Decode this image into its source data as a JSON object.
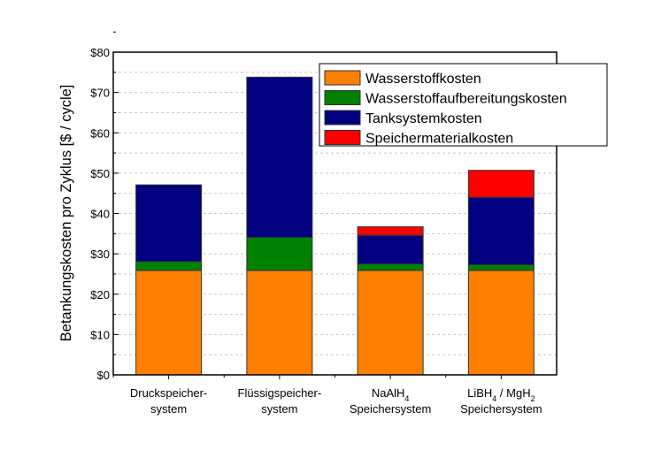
{
  "chart_data": {
    "type": "bar",
    "stacked": true,
    "title": "",
    "xlabel": "",
    "ylabel": "Betankungskosten pro Zyklus [$ / cycle]",
    "ylim": [
      0,
      80
    ],
    "yticks": [
      "$0",
      "$10",
      "$20",
      "$30",
      "$40",
      "$50",
      "$60",
      "$70",
      "$80"
    ],
    "grid": "dashed horizontal every $5",
    "legend_position": "top-right",
    "categories": [
      {
        "line1": "Druckspeicher-",
        "line2": "system"
      },
      {
        "line1": "Flüssigspeicher-",
        "line2": "system"
      },
      {
        "line1": "NaAlH",
        "sub1": "4",
        "line2": "Speichersystem"
      },
      {
        "line1": "LiBH",
        "sub1": "4",
        "mid": " / MgH",
        "sub2": "2",
        "line2": "Speichersystem"
      }
    ],
    "series": [
      {
        "name": "Wasserstoffkosten",
        "color": "#ff8000",
        "values": [
          25.9,
          25.9,
          25.9,
          25.9
        ]
      },
      {
        "name": "Wasserstoffaufbereitungskosten",
        "color": "#008000",
        "values": [
          2.2,
          8.2,
          1.6,
          1.4
        ]
      },
      {
        "name": "Tanksystemkosten",
        "color": "#000080",
        "values": [
          19.0,
          39.7,
          7.1,
          16.7
        ]
      },
      {
        "name": "Speichermaterialkosten",
        "color": "#ff0000",
        "values": [
          0,
          0,
          2.1,
          6.7
        ]
      }
    ]
  }
}
